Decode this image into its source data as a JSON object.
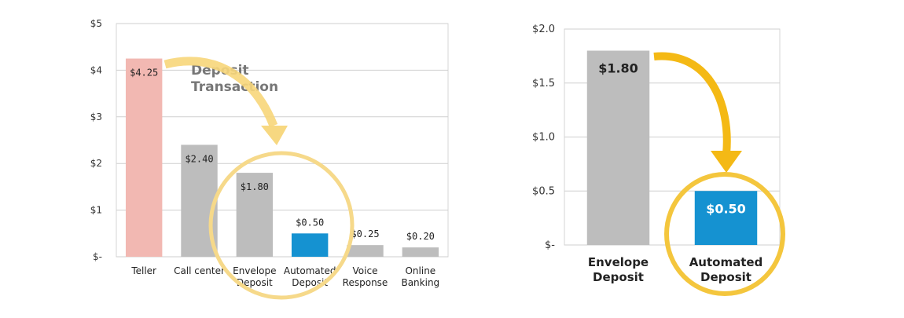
{
  "chart_data": [
    {
      "type": "bar",
      "categories": [
        [
          "Teller"
        ],
        [
          "Call center"
        ],
        [
          "Envelope",
          "Deposit"
        ],
        [
          "Automated",
          "Deposit"
        ],
        [
          "Voice",
          "Response"
        ],
        [
          "Online",
          "Banking"
        ]
      ],
      "values": [
        4.25,
        2.4,
        1.8,
        0.5,
        0.25,
        0.2
      ],
      "data_labels": [
        "$4.25",
        "$2.40",
        "$1.80",
        "$0.50",
        "$0.25",
        "$0.20"
      ],
      "bar_colors": [
        "#f2b8b2",
        "#bdbdbd",
        "#bdbdbd",
        "#1592d1",
        "#bdbdbd",
        "#bdbdbd"
      ],
      "ylim": [
        0,
        5
      ],
      "y_ticks": [
        0,
        1,
        2,
        3,
        4,
        5
      ],
      "y_tick_labels": [
        "$-",
        "$1",
        "$2",
        "$3",
        "$4",
        "$5"
      ],
      "grid": true,
      "annotation": [
        "Deposit",
        "Transaction"
      ],
      "highlight": "circle around Envelope Deposit and Automated Deposit"
    },
    {
      "type": "bar",
      "categories": [
        [
          "Envelope",
          "Deposit"
        ],
        [
          "Automated",
          "Deposit"
        ]
      ],
      "values": [
        1.8,
        0.5
      ],
      "data_labels": [
        "$1.80",
        "$0.50"
      ],
      "bar_colors": [
        "#bdbdbd",
        "#1592d1"
      ],
      "ylim": [
        0,
        2.0
      ],
      "y_ticks": [
        0,
        0.5,
        1.0,
        1.5,
        2.0
      ],
      "y_tick_labels": [
        "$-",
        "$0.5",
        "$1.0",
        "$1.5",
        "$2.0"
      ],
      "grid": true,
      "highlight": "circle around Automated Deposit"
    }
  ],
  "colors": {
    "accent_circle": "#f4c63d",
    "arrow": "#f4b915",
    "grid": "#cfcfcf",
    "plot_bg": "#ffffff"
  }
}
